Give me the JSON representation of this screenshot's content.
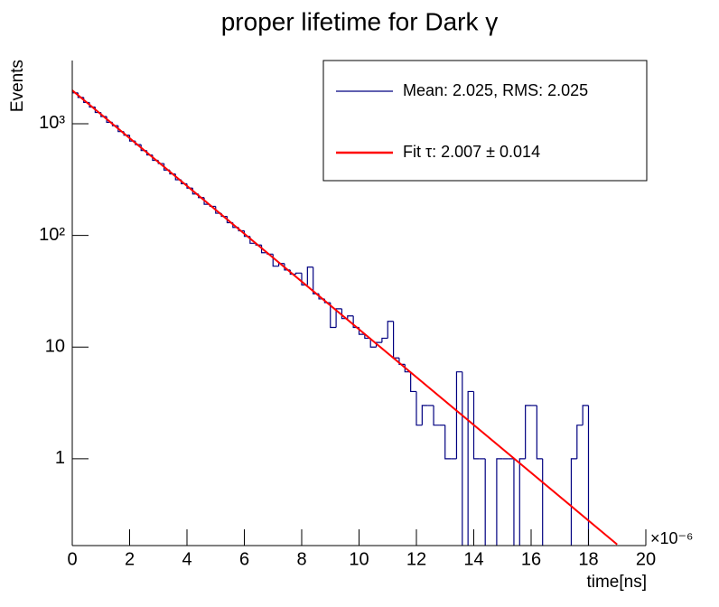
{
  "chart_data": {
    "type": "histogram",
    "title": "proper lifetime for Dark γ",
    "xlabel": "time[ns]",
    "ylabel": "Events",
    "x_multiplier": "×10⁻⁶",
    "log_y": true,
    "name": "Mean: 2.025, RMS: 2.025",
    "color": "#000080",
    "bins": [
      0,
      0.2,
      0.4,
      0.6,
      0.8,
      1,
      1.2,
      1.4,
      1.6,
      1.8,
      2,
      2.2,
      2.4,
      2.6,
      2.8,
      3,
      3.2,
      3.4,
      3.6,
      3.8,
      4,
      4.2,
      4.4,
      4.6,
      4.8,
      5,
      5.2,
      5.4,
      5.6,
      5.8,
      6,
      6.2,
      6.4,
      6.6,
      6.8,
      7,
      7.2,
      7.4,
      7.6,
      7.8,
      8,
      8.2,
      8.4,
      8.6,
      8.8,
      9,
      9.2,
      9.4,
      9.6,
      9.8,
      10,
      10.2,
      10.4,
      10.6,
      10.8,
      11,
      11.2,
      11.4,
      11.6,
      11.8,
      12,
      12.2,
      12.4,
      12.6,
      12.8,
      13,
      13.2,
      13.4,
      13.6,
      13.8,
      14,
      14.2,
      14.4,
      14.6,
      14.8,
      15,
      15.2,
      15.4,
      15.6,
      15.8,
      16,
      16.2,
      16.4,
      16.6,
      16.8,
      17,
      17.2,
      17.4,
      17.6,
      17.8,
      18,
      18.2,
      18.4,
      18.6,
      18.8,
      19,
      19.2,
      19.4,
      19.6,
      19.8,
      20
    ],
    "counts": [
      1890,
      1720,
      1550,
      1410,
      1260,
      1160,
      1030,
      960,
      850,
      790,
      700,
      650,
      575,
      525,
      470,
      440,
      385,
      355,
      315,
      290,
      265,
      235,
      218,
      190,
      182,
      158,
      148,
      130,
      118,
      110,
      98,
      85,
      82,
      70,
      68,
      53,
      56,
      49,
      45,
      46,
      36,
      52,
      30,
      27,
      25,
      15,
      22,
      18,
      19,
      15,
      13,
      12,
      10,
      11,
      12,
      17,
      8,
      7,
      6,
      4,
      2,
      3,
      3,
      2,
      2,
      1,
      1,
      6,
      0,
      4,
      1,
      1,
      0,
      0,
      1,
      1,
      1,
      0,
      1,
      3,
      3,
      1,
      0,
      0,
      0,
      0,
      0,
      1,
      2,
      3,
      0,
      0,
      0,
      0,
      0,
      0,
      0,
      0,
      0,
      0
    ],
    "fit": {
      "name": "Fit τ: 2.007 ± 0.014",
      "color": "#ff0000",
      "x": [
        0,
        19
      ],
      "values": [
        1990,
        0.171
      ]
    },
    "xlim": [
      0,
      20
    ],
    "xticks": [
      0,
      2,
      4,
      6,
      8,
      10,
      12,
      14,
      16,
      18,
      20
    ],
    "ylim": [
      0.167,
      3680
    ],
    "yticks": [
      1,
      10,
      {
        "value": 100,
        "label": "10²"
      },
      {
        "value": 1000,
        "label": "10³"
      }
    ],
    "legend": "upper right"
  }
}
